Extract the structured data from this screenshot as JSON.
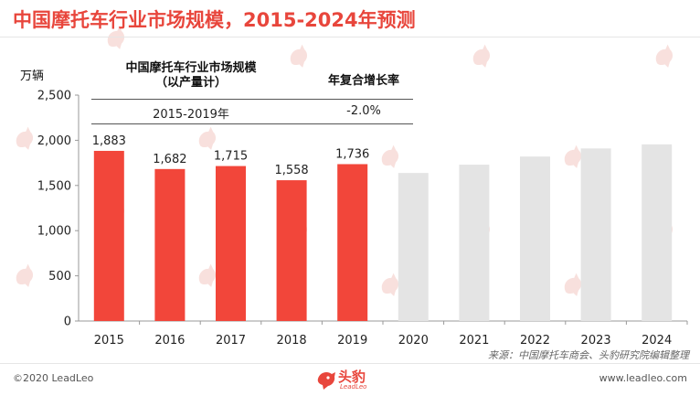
{
  "page": {
    "title": "中国摩托车行业市场规模，2015-2024年预测",
    "source_note": "来源：中国摩托车商会、头豹研究院编辑整理",
    "copyright": "©2020 LeadLeo",
    "website": "www.leadleo.com",
    "brand_name": "头豹",
    "brand_sub": "LeadLeo",
    "watermark_text": "头豹"
  },
  "info_box": {
    "header_left_line1": "中国摩托车行业市场规模",
    "header_left_line2": "（以产量计）",
    "header_right": "年复合增长率",
    "period": "2015-2019年",
    "cagr": "-2.0%"
  },
  "colors": {
    "accent": "#e8463c",
    "actual_bar": "#f2463a",
    "forecast_bar": "#e4e4e4",
    "watermark": "#f8e0dd"
  },
  "chart_data": {
    "type": "bar",
    "ylabel": "万辆",
    "xlabel": "",
    "ylim": [
      0,
      2500
    ],
    "yticks": [
      0,
      500,
      1000,
      1500,
      2000,
      2500
    ],
    "ytick_labels": [
      "0",
      "500",
      "1,000",
      "1,500",
      "2,000",
      "2,500"
    ],
    "grid": false,
    "categories": [
      "2015",
      "2016",
      "2017",
      "2018",
      "2019",
      "2020",
      "2021",
      "2022",
      "2023",
      "2024"
    ],
    "values": [
      1883,
      1682,
      1715,
      1558,
      1736,
      1638,
      1730,
      1820,
      1910,
      1955
    ],
    "is_forecast": [
      false,
      false,
      false,
      false,
      false,
      true,
      true,
      true,
      true,
      true
    ],
    "data_labels": [
      "1,883",
      "1,682",
      "1,715",
      "1,558",
      "1,736",
      "",
      "",
      "",
      "",
      ""
    ]
  }
}
